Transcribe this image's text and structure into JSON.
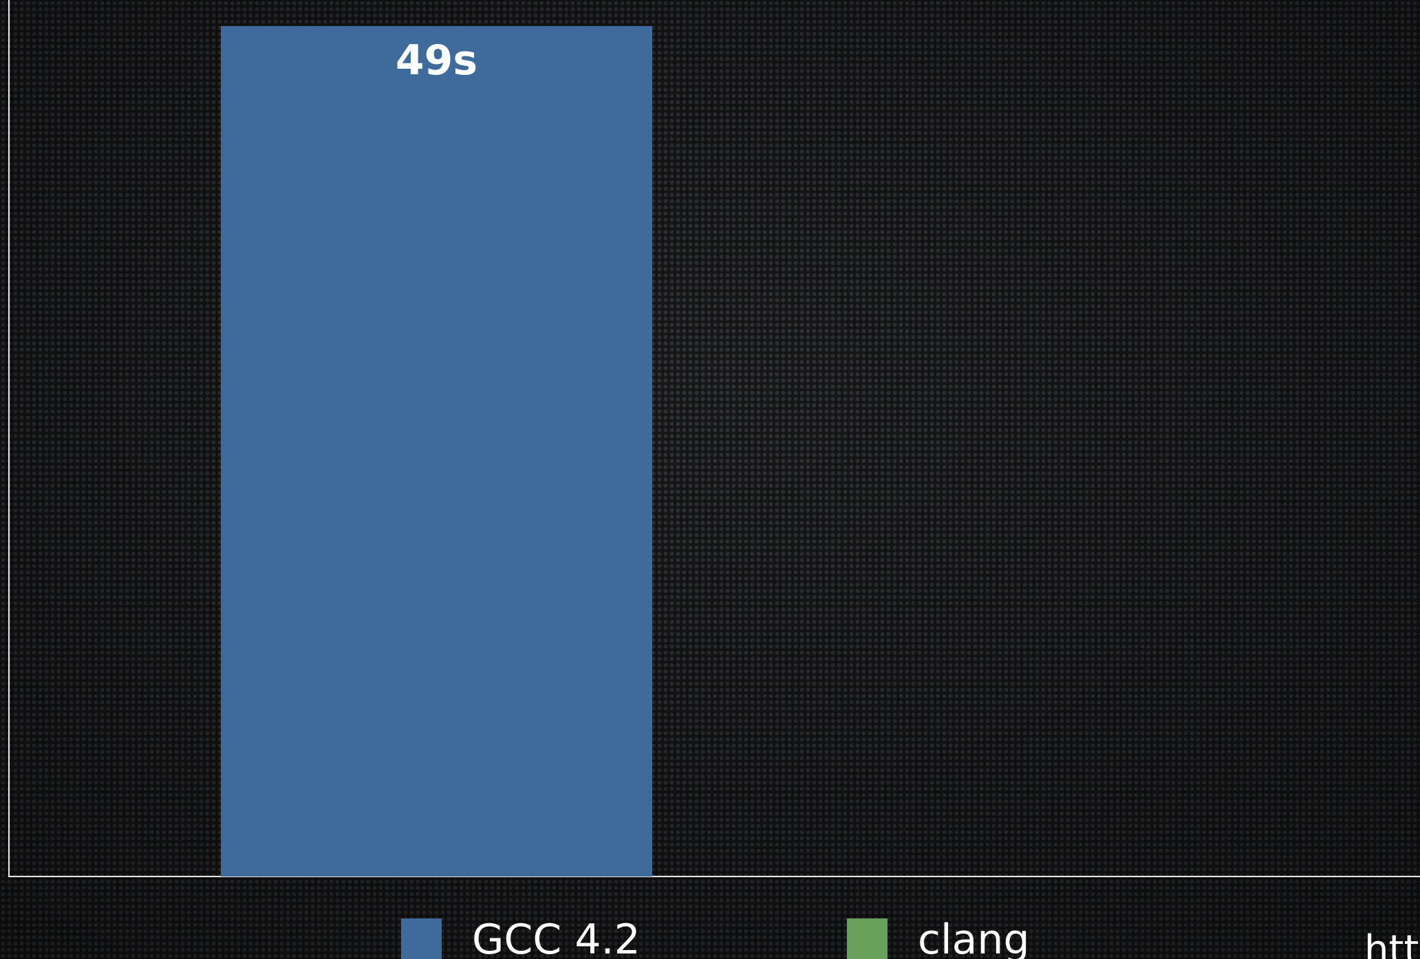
{
  "chart_data": {
    "type": "bar",
    "categories": [
      null
    ],
    "series": [
      {
        "name": "GCC 4.2",
        "color": "#3e6b9c",
        "values": [
          49
        ],
        "value_labels": [
          "49s"
        ]
      },
      {
        "name": "clang",
        "color": "#6aa15a",
        "values": [
          null
        ]
      }
    ],
    "ylim": [
      0,
      50.5
    ],
    "footer": "htt"
  }
}
